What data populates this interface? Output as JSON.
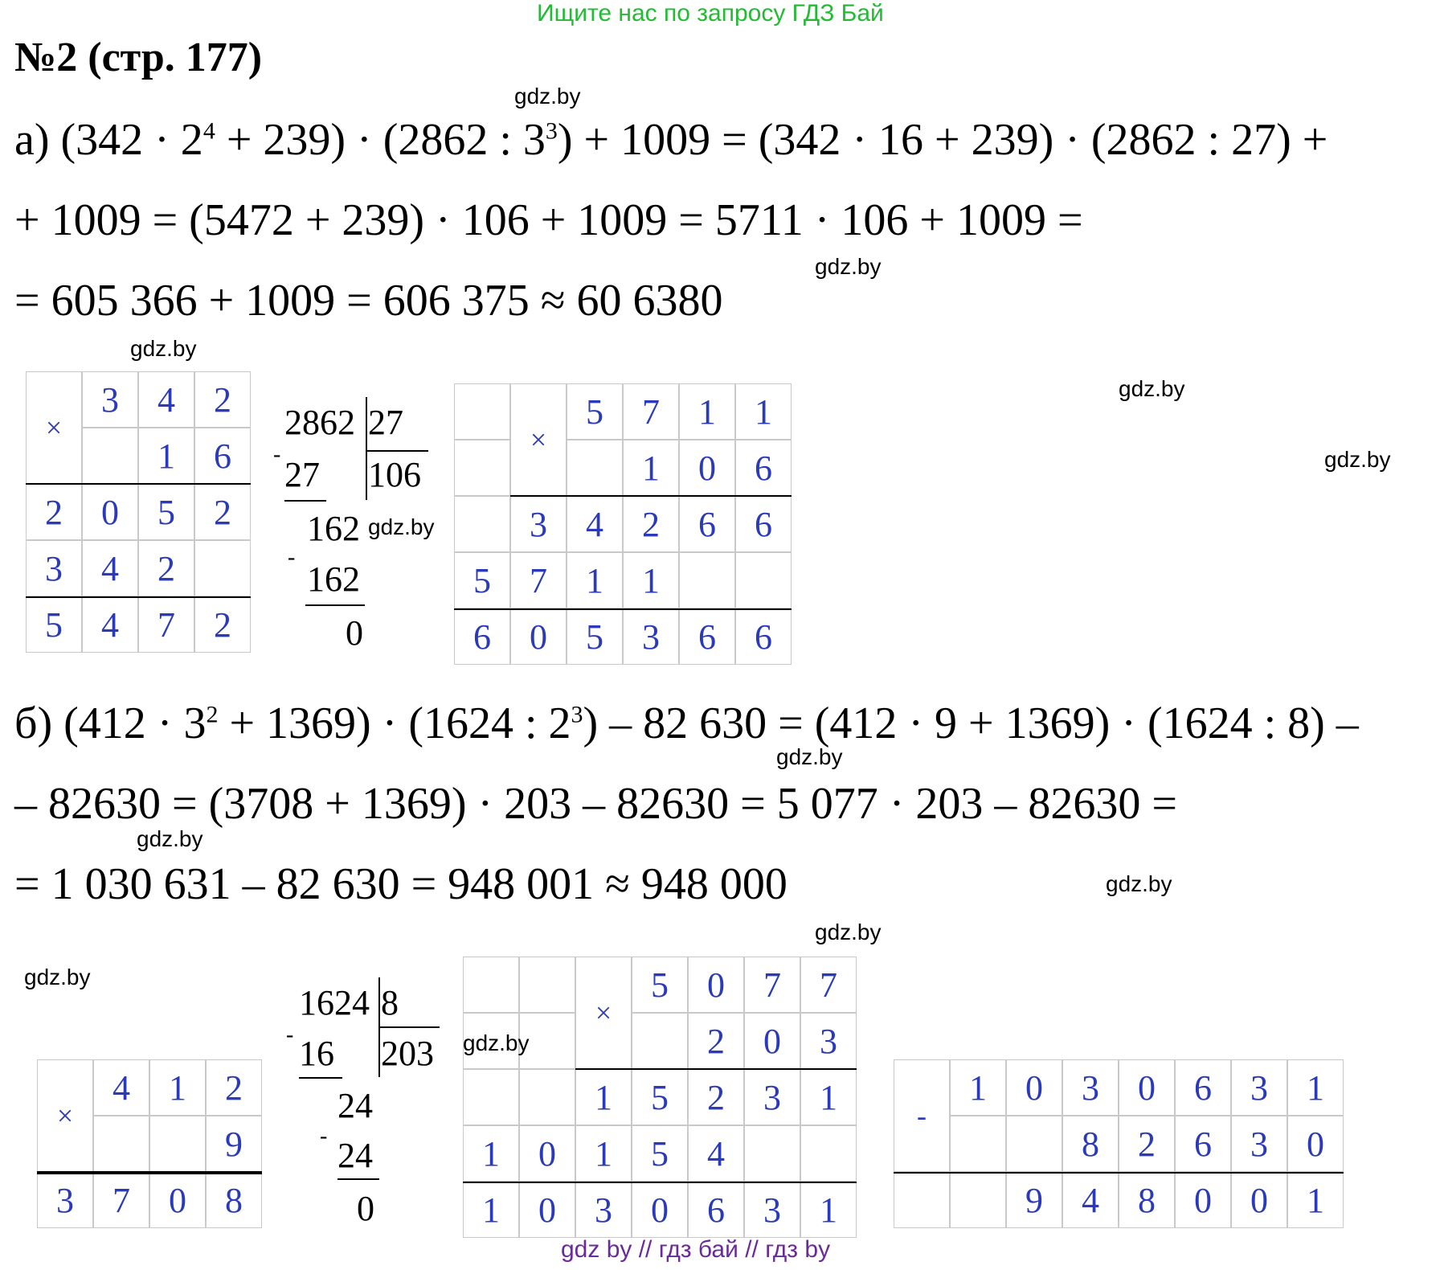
{
  "header": {
    "promo": "Ищите нас по запросу ГДЗ Бай",
    "title": "№2 (стр. 177)"
  },
  "watermark": "gdz.by",
  "part_a": {
    "line1": "а) (342 · 2",
    "line1_sup1": "4",
    "line1_mid": " + 239) · (2862 : 3",
    "line1_sup2": "3",
    "line1_end": ") + 1009 = (342 · 16 + 239) · (2862 : 27) +",
    "line2": "+ 1009 = (5472 + 239) · 106 + 1009 = 5711 · 106 + 1009 =",
    "line3": "= 605 366 + 1009 = 606 375 ≈ 60 6380",
    "mult1": {
      "op": "×",
      "rows": [
        [
          "",
          "3",
          "4",
          "2"
        ],
        [
          "",
          "",
          "1",
          "6"
        ],
        [
          "2",
          "0",
          "5",
          "2"
        ],
        [
          "3",
          "4",
          "2",
          ""
        ],
        [
          "5",
          "4",
          "7",
          "2"
        ]
      ]
    },
    "division": {
      "dividend": "2862",
      "divisor": "27",
      "quotient": "106",
      "sub1": "27",
      "rem1": "162",
      "sub2": "162",
      "rem2": "0",
      "minus": "-"
    },
    "mult2": {
      "op": "×",
      "rows": [
        [
          "",
          "",
          "5",
          "7",
          "1",
          "1"
        ],
        [
          "",
          "",
          "",
          "1",
          "0",
          "6"
        ],
        [
          "",
          "3",
          "4",
          "2",
          "6",
          "6"
        ],
        [
          "5",
          "7",
          "1",
          "1",
          "",
          ""
        ],
        [
          "6",
          "0",
          "5",
          "3",
          "6",
          "6"
        ]
      ]
    }
  },
  "part_b": {
    "line1": "б) (412 · 3",
    "line1_sup1": "2",
    "line1_mid": " + 1369) · (1624 : 2",
    "line1_sup2": "3",
    "line1_end": ") – 82 630 = (412 · 9 + 1369) · (1624 : 8) –",
    "line2": "– 82630 = (3708 + 1369) · 203 – 82630 = 5 077 · 203 – 82630 =",
    "line3": "= 1 030 631 – 82 630 = 948 001 ≈ 948 000",
    "mult1": {
      "op": "×",
      "rows": [
        [
          "",
          "4",
          "1",
          "2"
        ],
        [
          "",
          "",
          "",
          "9"
        ],
        [
          "3",
          "7",
          "0",
          "8"
        ]
      ]
    },
    "division": {
      "dividend": "1624",
      "divisor": "8",
      "quotient": "203",
      "sub1": "16",
      "rem1": "24",
      "sub2": "24",
      "rem2": "0",
      "minus": "-"
    },
    "mult2": {
      "op": "×",
      "rows": [
        [
          "",
          "",
          "",
          "5",
          "0",
          "7",
          "7"
        ],
        [
          "",
          "",
          "",
          "",
          "2",
          "0",
          "3"
        ],
        [
          "",
          "",
          "1",
          "5",
          "2",
          "3",
          "1"
        ],
        [
          "1",
          "0",
          "1",
          "5",
          "4",
          "",
          ""
        ],
        [
          "1",
          "0",
          "3",
          "0",
          "6",
          "3",
          "1"
        ]
      ]
    },
    "subtraction": {
      "op": "-",
      "rows": [
        [
          "",
          "1",
          "0",
          "3",
          "0",
          "6",
          "3",
          "1"
        ],
        [
          "",
          "",
          "",
          "8",
          "2",
          "6",
          "3",
          "0"
        ],
        [
          "",
          "",
          "9",
          "4",
          "8",
          "0",
          "0",
          "1"
        ]
      ]
    }
  },
  "footer": "gdz by  //  гдз бай  //  гдз by"
}
